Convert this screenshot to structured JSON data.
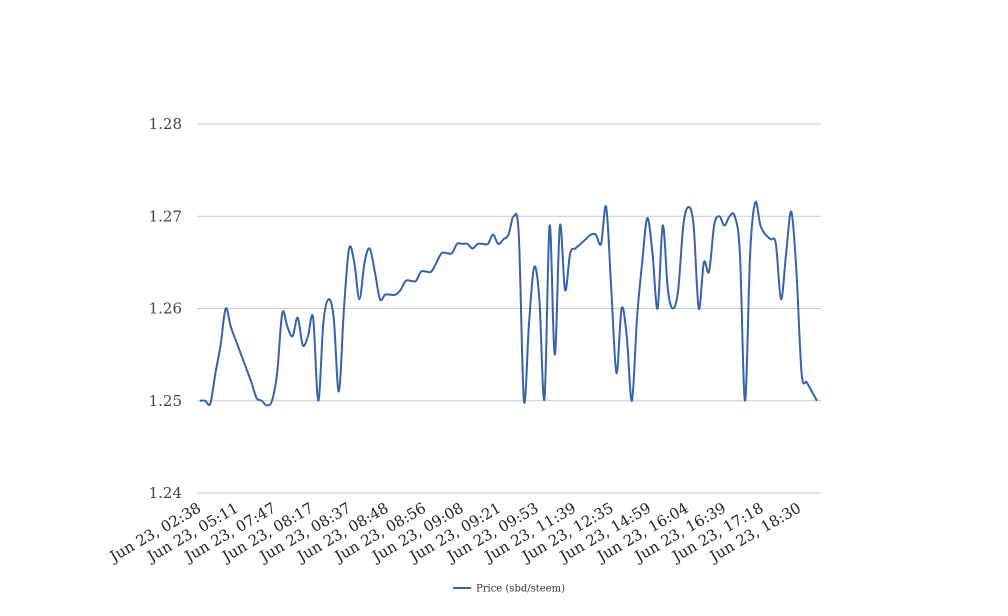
{
  "chart_data": {
    "type": "line",
    "title": "",
    "xlabel": "",
    "ylabel": "",
    "ylim": [
      1.24,
      1.28
    ],
    "y_ticks": [
      1.24,
      1.25,
      1.26,
      1.27,
      1.28
    ],
    "y_tick_labels": [
      "1.24",
      "1.25",
      "1.26",
      "1.27",
      "1.28"
    ],
    "x_tick_labels": [
      "Jun 23, 02:38",
      "Jun 23, 05:11",
      "Jun 23, 07:47",
      "Jun 23, 08:17",
      "Jun 23, 08:37",
      "Jun 23, 08:48",
      "Jun 23, 08:56",
      "Jun 23, 09:08",
      "Jun 23, 09:21",
      "Jun 23, 09:53",
      "Jun 23, 11:39",
      "Jun 23, 12:35",
      "Jun 23, 14:59",
      "Jun 23, 16:04",
      "Jun 23, 16:39",
      "Jun 23, 17:18",
      "Jun 23, 18:30"
    ],
    "grid": true,
    "legend_position": "bottom-center",
    "series": [
      {
        "name": "Price (sbd/steem)",
        "color": "#3563ad",
        "values": [
          1.25,
          1.25,
          1.2497,
          1.253,
          1.256,
          1.26,
          1.258,
          1.2565,
          1.255,
          1.2535,
          1.252,
          1.2503,
          1.25,
          1.2495,
          1.25,
          1.253,
          1.2595,
          1.258,
          1.257,
          1.259,
          1.256,
          1.257,
          1.259,
          1.25,
          1.2585,
          1.261,
          1.259,
          1.251,
          1.26,
          1.2665,
          1.265,
          1.261,
          1.265,
          1.2665,
          1.264,
          1.261,
          1.2615,
          1.2615,
          1.2615,
          1.262,
          1.263,
          1.263,
          1.263,
          1.264,
          1.264,
          1.264,
          1.265,
          1.266,
          1.266,
          1.266,
          1.267,
          1.267,
          1.267,
          1.2665,
          1.267,
          1.267,
          1.267,
          1.268,
          1.267,
          1.2675,
          1.268,
          1.27,
          1.268,
          1.25,
          1.2585,
          1.2645,
          1.261,
          1.2502,
          1.269,
          1.255,
          1.269,
          1.262,
          1.266,
          1.2665,
          1.267,
          1.2675,
          1.268,
          1.268,
          1.267,
          1.271,
          1.262,
          1.253,
          1.26,
          1.257,
          1.25,
          1.259,
          1.265,
          1.2698,
          1.266,
          1.26,
          1.269,
          1.262,
          1.26,
          1.262,
          1.269,
          1.271,
          1.269,
          1.26,
          1.265,
          1.264,
          1.269,
          1.27,
          1.269,
          1.27,
          1.27,
          1.266,
          1.25,
          1.266,
          1.2715,
          1.269,
          1.268,
          1.2675,
          1.267,
          1.261,
          1.266,
          1.2705,
          1.264,
          1.253,
          1.252,
          1.251,
          1.25
        ]
      }
    ]
  }
}
